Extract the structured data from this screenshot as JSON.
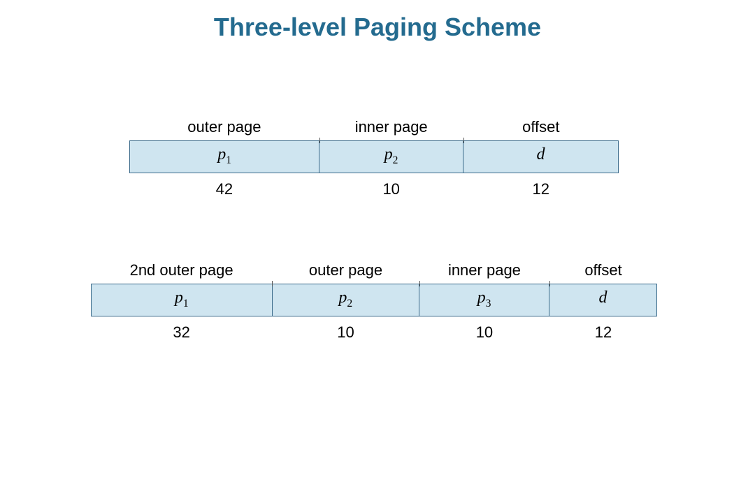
{
  "title": "Three-level Paging Scheme",
  "colors": {
    "title": "#246b8f",
    "bar_fill": "#cfe5f0",
    "bar_border": "#3a6a8a",
    "background": "#ffffff",
    "text": "#000000"
  },
  "diagram1": {
    "segments": [
      {
        "label": "outer page",
        "symbol": "p",
        "subscript": "1",
        "bits": "42",
        "width_fr": 3.3
      },
      {
        "label": "inner page",
        "symbol": "p",
        "subscript": "2",
        "bits": "10",
        "width_fr": 2.5
      },
      {
        "label": "offset",
        "symbol": "d",
        "subscript": "",
        "bits": "12",
        "width_fr": 2.7
      }
    ]
  },
  "diagram2": {
    "segments": [
      {
        "label": "2nd outer page",
        "symbol": "p",
        "subscript": "1",
        "bits": "32",
        "width_fr": 3.2
      },
      {
        "label": "outer page",
        "symbol": "p",
        "subscript": "2",
        "bits": "10",
        "width_fr": 2.6
      },
      {
        "label": "inner page",
        "symbol": "p",
        "subscript": "3",
        "bits": "10",
        "width_fr": 2.3
      },
      {
        "label": "offset",
        "symbol": "d",
        "subscript": "",
        "bits": "12",
        "width_fr": 1.9
      }
    ]
  }
}
